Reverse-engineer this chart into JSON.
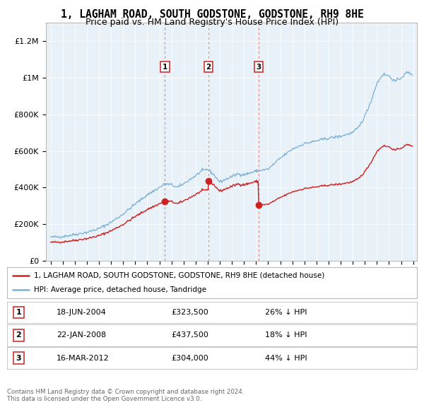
{
  "title": "1, LAGHAM ROAD, SOUTH GODSTONE, GODSTONE, RH9 8HE",
  "subtitle": "Price paid vs. HM Land Registry's House Price Index (HPI)",
  "title_fontsize": 10.5,
  "subtitle_fontsize": 9,
  "bg_color": "#ffffff",
  "plot_bg_color": "#e8f0f8",
  "grid_color": "#ffffff",
  "hpi_color": "#7ab0d4",
  "price_color": "#cc2222",
  "trans_dates_float": [
    2004.46,
    2008.05,
    2012.21
  ],
  "trans_prices": [
    323500,
    437500,
    304000
  ],
  "trans_labels": [
    "1",
    "2",
    "3"
  ],
  "legend_entries": [
    "1, LAGHAM ROAD, SOUTH GODSTONE, GODSTONE, RH9 8HE (detached house)",
    "HPI: Average price, detached house, Tandridge"
  ],
  "table_rows": [
    {
      "num": "1",
      "date": "18-JUN-2004",
      "price": "£323,500",
      "pct": "26% ↓ HPI"
    },
    {
      "num": "2",
      "date": "22-JAN-2008",
      "price": "£437,500",
      "pct": "18% ↓ HPI"
    },
    {
      "num": "3",
      "date": "16-MAR-2012",
      "price": "£304,000",
      "pct": "44% ↓ HPI"
    }
  ],
  "footer": "Contains HM Land Registry data © Crown copyright and database right 2024.\nThis data is licensed under the Open Government Licence v3.0.",
  "ylim": [
    0,
    1300000
  ],
  "yticks": [
    0,
    200000,
    400000,
    600000,
    800000,
    1000000,
    1200000
  ],
  "ytick_labels": [
    "£0",
    "£200K",
    "£400K",
    "£600K",
    "£800K",
    "£1M",
    "£1.2M"
  ],
  "hpi_key_points": [
    [
      1995.0,
      128000
    ],
    [
      1996.0,
      132000
    ],
    [
      1997.0,
      143000
    ],
    [
      1998.0,
      155000
    ],
    [
      1999.0,
      175000
    ],
    [
      2000.0,
      210000
    ],
    [
      2001.0,
      255000
    ],
    [
      2002.0,
      310000
    ],
    [
      2003.0,
      360000
    ],
    [
      2004.0,
      400000
    ],
    [
      2004.5,
      420000
    ],
    [
      2005.0,
      415000
    ],
    [
      2005.5,
      400000
    ],
    [
      2006.0,
      420000
    ],
    [
      2007.0,
      465000
    ],
    [
      2007.5,
      490000
    ],
    [
      2008.0,
      500000
    ],
    [
      2008.5,
      470000
    ],
    [
      2009.0,
      430000
    ],
    [
      2009.5,
      445000
    ],
    [
      2010.0,
      460000
    ],
    [
      2010.5,
      475000
    ],
    [
      2011.0,
      470000
    ],
    [
      2011.5,
      480000
    ],
    [
      2012.0,
      490000
    ],
    [
      2013.0,
      500000
    ],
    [
      2014.0,
      560000
    ],
    [
      2015.0,
      610000
    ],
    [
      2016.0,
      640000
    ],
    [
      2017.0,
      655000
    ],
    [
      2018.0,
      670000
    ],
    [
      2019.0,
      680000
    ],
    [
      2020.0,
      700000
    ],
    [
      2020.5,
      730000
    ],
    [
      2021.0,
      790000
    ],
    [
      2021.5,
      870000
    ],
    [
      2022.0,
      970000
    ],
    [
      2022.5,
      1020000
    ],
    [
      2023.0,
      1010000
    ],
    [
      2023.5,
      980000
    ],
    [
      2024.0,
      1000000
    ],
    [
      2024.5,
      1030000
    ],
    [
      2024.9,
      1020000
    ]
  ]
}
